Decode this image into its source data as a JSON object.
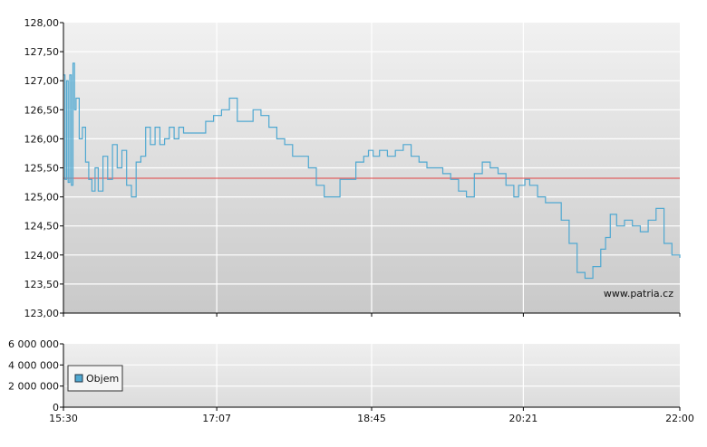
{
  "chart_data": [
    {
      "type": "line",
      "title": "",
      "xlabel": "",
      "ylabel": "",
      "ylim": [
        123.0,
        128.0
      ],
      "y_ticks": [
        "128,00",
        "127,50",
        "127,00",
        "126,50",
        "126,00",
        "125,50",
        "125,00",
        "124,50",
        "124,00",
        "123,50",
        "123,00"
      ],
      "x_ticks": [
        "15:30",
        "17:07",
        "18:45",
        "20:21",
        "22:00"
      ],
      "reference_line": 125.32,
      "watermark": "www.patria.cz",
      "colors": {
        "line": "#4fa8d1",
        "reference": "#e04040",
        "grid": "#ffffff"
      },
      "series": [
        {
          "x": [
            "15:30",
            "15:31",
            "15:32",
            "15:33",
            "15:34",
            "15:35",
            "15:36",
            "15:37",
            "15:38",
            "15:40",
            "15:42",
            "15:44",
            "15:46",
            "15:48",
            "15:50",
            "15:52",
            "15:55",
            "15:58",
            "16:01",
            "16:04",
            "16:07",
            "16:10",
            "16:13",
            "16:16",
            "16:19",
            "16:22",
            "16:25",
            "16:28",
            "16:31",
            "16:34",
            "16:37",
            "16:40",
            "16:43",
            "16:46",
            "16:50",
            "16:55",
            "17:00",
            "17:05",
            "17:10",
            "17:15",
            "17:20",
            "17:25",
            "17:30",
            "17:35",
            "17:40",
            "17:45",
            "17:50",
            "17:55",
            "18:00",
            "18:05",
            "18:10",
            "18:15",
            "18:20",
            "18:25",
            "18:30",
            "18:35",
            "18:40",
            "18:43",
            "18:46",
            "18:50",
            "18:55",
            "19:00",
            "19:05",
            "19:10",
            "19:15",
            "19:20",
            "19:25",
            "19:30",
            "19:35",
            "19:40",
            "19:45",
            "19:50",
            "19:55",
            "20:00",
            "20:05",
            "20:10",
            "20:15",
            "20:18",
            "20:22",
            "20:25",
            "20:30",
            "20:35",
            "20:40",
            "20:45",
            "20:50",
            "20:55",
            "21:00",
            "21:05",
            "21:10",
            "21:13",
            "21:16",
            "21:20",
            "21:25",
            "21:30",
            "21:35",
            "21:40",
            "21:45",
            "21:50",
            "21:55",
            "22:00"
          ],
          "values": [
            127.1,
            125.3,
            127.0,
            125.25,
            127.1,
            125.2,
            127.3,
            126.5,
            126.7,
            126.0,
            126.2,
            125.6,
            125.3,
            125.1,
            125.5,
            125.1,
            125.7,
            125.3,
            125.9,
            125.5,
            125.8,
            125.2,
            125.0,
            125.6,
            125.7,
            126.2,
            125.9,
            126.2,
            125.9,
            126.0,
            126.2,
            126.0,
            126.2,
            126.1,
            126.1,
            126.1,
            126.3,
            126.4,
            126.5,
            126.7,
            126.3,
            126.3,
            126.5,
            126.4,
            126.2,
            126.0,
            125.9,
            125.7,
            125.7,
            125.5,
            125.2,
            125.0,
            125.0,
            125.3,
            125.3,
            125.6,
            125.7,
            125.8,
            125.7,
            125.8,
            125.7,
            125.8,
            125.9,
            125.7,
            125.6,
            125.5,
            125.5,
            125.4,
            125.3,
            125.1,
            125.0,
            125.4,
            125.6,
            125.5,
            125.4,
            125.2,
            125.0,
            125.2,
            125.3,
            125.2,
            125.0,
            124.9,
            124.9,
            124.6,
            124.2,
            123.7,
            123.6,
            123.8,
            124.1,
            124.3,
            124.7,
            124.5,
            124.6,
            124.5,
            124.4,
            124.6,
            124.8,
            124.2,
            124.0,
            123.95
          ]
        }
      ]
    },
    {
      "type": "bar",
      "title": "",
      "xlabel": "",
      "ylabel": "",
      "ylim": [
        0,
        6000000
      ],
      "y_ticks": [
        "6 000 000",
        "4 000 000",
        "2 000 000",
        "0"
      ],
      "x_ticks": [
        "15:30",
        "17:07",
        "18:45",
        "20:21",
        "22:00"
      ],
      "legend": {
        "position": "left",
        "entries": [
          "Objem"
        ]
      },
      "colors": {
        "bar": "#4fa8d1"
      },
      "series": [
        {
          "name": "Objem",
          "x": [
            "21:05",
            "21:40",
            "21:55"
          ],
          "values": [
            20000,
            20000,
            30000
          ]
        }
      ]
    }
  ]
}
